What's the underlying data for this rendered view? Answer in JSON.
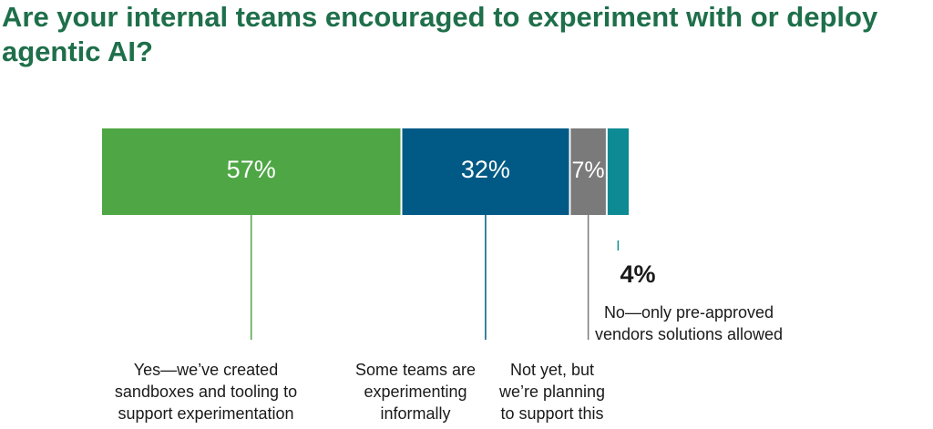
{
  "title": "Are your internal teams encouraged to experiment with or deploy agentic AI?",
  "chart_data": {
    "type": "bar",
    "orientation": "horizontal-stacked",
    "title": "Are your internal teams encouraged to experiment with or deploy agentic AI?",
    "categories": [
      "Yes—we’ve created sandboxes and tooling to support experimentation",
      "Some teams are experimenting informally",
      "Not yet, but we’re planning to support this",
      "No—only pre-approved vendors solutions allowed"
    ],
    "values": [
      57,
      32,
      7,
      4
    ],
    "value_labels": [
      "57%",
      "32%",
      "7%",
      "4%"
    ],
    "label_lines": [
      [
        "Yes—we’ve created",
        "sandboxes and tooling to",
        "support experimentation"
      ],
      [
        "Some teams are",
        "experimenting",
        "informally"
      ],
      [
        "Not yet, but",
        "we’re planning",
        "to support this"
      ],
      [
        "No—only pre-approved",
        "vendors solutions allowed"
      ]
    ],
    "colors": [
      "#4ea645",
      "#005a85",
      "#7a7a7a",
      "#0e8a94"
    ],
    "xlim": [
      0,
      100
    ],
    "legend": "none",
    "grid": false
  }
}
